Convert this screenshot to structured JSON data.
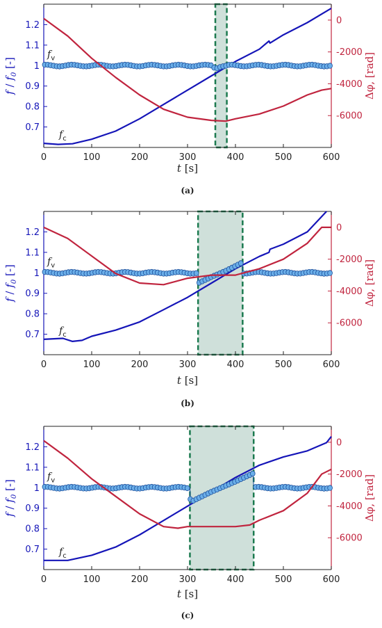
{
  "colors": {
    "frequency": "#1515b8",
    "phase": "#c0243e",
    "marker_fill": "#6aaee8",
    "marker_edge": "#1d4f9c",
    "window_fill": "#cfe0da",
    "window_edge": "#1b7a4f"
  },
  "labels": {
    "xlabel_t": "t",
    "xlabel_unit": "[s]",
    "ylabel_left_f": "f",
    "ylabel_left_sep": " / ",
    "ylabel_left_f0": "f",
    "ylabel_left_f0_sub": "0",
    "ylabel_left_unit": " [-]",
    "ylabel_right": "Δφ, [rad]",
    "fv_main": "f",
    "fv_sub": "v",
    "fc_main": "f",
    "fc_sub": "c"
  },
  "chart_data": [
    {
      "type": "line",
      "caption": "(a)",
      "xlim": [
        0,
        600
      ],
      "ylim_left": [
        0.6,
        1.3
      ],
      "ylim_right": [
        -8000,
        1000
      ],
      "x_ticks": [
        0,
        100,
        200,
        300,
        400,
        500,
        600
      ],
      "y_left_ticks": [
        "0.7",
        "0.8",
        "0.9",
        "1",
        "1.1",
        "1.2"
      ],
      "y_right_ticks": [
        "0",
        "-2000",
        "-4000",
        "-6000"
      ],
      "window": [
        358,
        382
      ],
      "series": [
        {
          "key": "fc",
          "axis": "left",
          "points": [
            [
              0,
              0.62
            ],
            [
              30,
              0.615
            ],
            [
              60,
              0.618
            ],
            [
              100,
              0.64
            ],
            [
              150,
              0.68
            ],
            [
              200,
              0.74
            ],
            [
              250,
              0.81
            ],
            [
              300,
              0.88
            ],
            [
              350,
              0.95
            ],
            [
              400,
              1.02
            ],
            [
              450,
              1.08
            ],
            [
              470,
              1.12
            ],
            [
              472,
              1.11
            ],
            [
              500,
              1.15
            ],
            [
              550,
              1.21
            ],
            [
              600,
              1.28
            ]
          ]
        },
        {
          "key": "fv",
          "axis": "left",
          "markers": true,
          "points": [
            [
              0,
              1.0
            ],
            [
              100,
              1.0
            ],
            [
              200,
              1.0
            ],
            [
              300,
              1.0
            ],
            [
              350,
              1.0
            ],
            [
              360,
              0.985
            ],
            [
              370,
              0.995
            ],
            [
              382,
              1.0
            ],
            [
              450,
              1.0
            ],
            [
              500,
              1.0
            ],
            [
              600,
              1.0
            ]
          ]
        },
        {
          "key": "phase",
          "axis": "right",
          "points": [
            [
              0,
              100
            ],
            [
              50,
              -1000
            ],
            [
              100,
              -2400
            ],
            [
              150,
              -3600
            ],
            [
              200,
              -4700
            ],
            [
              250,
              -5600
            ],
            [
              300,
              -6100
            ],
            [
              350,
              -6300
            ],
            [
              380,
              -6350
            ],
            [
              400,
              -6200
            ],
            [
              450,
              -5900
            ],
            [
              500,
              -5400
            ],
            [
              550,
              -4700
            ],
            [
              580,
              -4400
            ],
            [
              600,
              -4300
            ]
          ]
        }
      ]
    },
    {
      "type": "line",
      "caption": "(b)",
      "xlim": [
        0,
        600
      ],
      "ylim_left": [
        0.6,
        1.3
      ],
      "ylim_right": [
        -8000,
        1000
      ],
      "x_ticks": [
        0,
        100,
        200,
        300,
        400,
        500,
        600
      ],
      "y_left_ticks": [
        "0.7",
        "0.8",
        "0.9",
        "1",
        "1.1",
        "1.2"
      ],
      "y_right_ticks": [
        "0",
        "-2000",
        "-4000",
        "-6000"
      ],
      "window": [
        322,
        415
      ],
      "series": [
        {
          "key": "fc",
          "axis": "left",
          "points": [
            [
              0,
              0.675
            ],
            [
              40,
              0.68
            ],
            [
              60,
              0.665
            ],
            [
              80,
              0.67
            ],
            [
              100,
              0.69
            ],
            [
              150,
              0.72
            ],
            [
              200,
              0.76
            ],
            [
              250,
              0.82
            ],
            [
              300,
              0.88
            ],
            [
              350,
              0.95
            ],
            [
              400,
              1.02
            ],
            [
              450,
              1.08
            ],
            [
              470,
              1.1
            ],
            [
              472,
              1.115
            ],
            [
              500,
              1.14
            ],
            [
              550,
              1.2
            ],
            [
              590,
              1.3
            ]
          ]
        },
        {
          "key": "fv",
          "axis": "left",
          "markers": true,
          "points": [
            [
              0,
              1.0
            ],
            [
              100,
              1.0
            ],
            [
              200,
              1.0
            ],
            [
              300,
              1.0
            ],
            [
              322,
              1.0
            ],
            [
              323,
              0.95
            ],
            [
              350,
              0.98
            ],
            [
              380,
              1.01
            ],
            [
              414,
              1.05
            ],
            [
              415,
              1.0
            ],
            [
              500,
              1.0
            ],
            [
              600,
              1.0
            ]
          ]
        },
        {
          "key": "phase",
          "axis": "right",
          "points": [
            [
              0,
              0
            ],
            [
              50,
              -700
            ],
            [
              100,
              -1800
            ],
            [
              150,
              -2900
            ],
            [
              200,
              -3500
            ],
            [
              250,
              -3600
            ],
            [
              300,
              -3200
            ],
            [
              350,
              -3000
            ],
            [
              400,
              -3000
            ],
            [
              450,
              -2600
            ],
            [
              500,
              -2000
            ],
            [
              550,
              -1000
            ],
            [
              580,
              0
            ],
            [
              600,
              0
            ]
          ]
        }
      ]
    },
    {
      "type": "line",
      "caption": "(c)",
      "xlim": [
        0,
        600
      ],
      "ylim_left": [
        0.6,
        1.3
      ],
      "ylim_right": [
        -8000,
        1000
      ],
      "x_ticks": [
        0,
        100,
        200,
        300,
        400,
        500,
        600
      ],
      "y_left_ticks": [
        "0.7",
        "0.8",
        "0.9",
        "1",
        "1.1",
        "1.2"
      ],
      "y_right_ticks": [
        "0",
        "-2000",
        "-4000",
        "-6000"
      ],
      "window": [
        305,
        438
      ],
      "series": [
        {
          "key": "fc",
          "axis": "left",
          "points": [
            [
              0,
              0.645
            ],
            [
              50,
              0.645
            ],
            [
              100,
              0.67
            ],
            [
              150,
              0.71
            ],
            [
              200,
              0.77
            ],
            [
              250,
              0.84
            ],
            [
              300,
              0.91
            ],
            [
              350,
              0.98
            ],
            [
              400,
              1.05
            ],
            [
              450,
              1.11
            ],
            [
              500,
              1.15
            ],
            [
              550,
              1.18
            ],
            [
              590,
              1.22
            ],
            [
              600,
              1.25
            ]
          ]
        },
        {
          "key": "fv",
          "axis": "left",
          "markers": true,
          "points": [
            [
              0,
              1.0
            ],
            [
              100,
              1.0
            ],
            [
              200,
              1.0
            ],
            [
              300,
              1.0
            ],
            [
              305,
              1.0
            ],
            [
              306,
              0.93
            ],
            [
              350,
              0.98
            ],
            [
              400,
              1.03
            ],
            [
              437,
              1.07
            ],
            [
              438,
              1.0
            ],
            [
              500,
              1.0
            ],
            [
              600,
              1.0
            ]
          ]
        },
        {
          "key": "phase",
          "axis": "right",
          "points": [
            [
              0,
              100
            ],
            [
              50,
              -1000
            ],
            [
              100,
              -2300
            ],
            [
              150,
              -3400
            ],
            [
              200,
              -4500
            ],
            [
              250,
              -5300
            ],
            [
              280,
              -5400
            ],
            [
              300,
              -5300
            ],
            [
              350,
              -5300
            ],
            [
              400,
              -5300
            ],
            [
              430,
              -5200
            ],
            [
              450,
              -4900
            ],
            [
              500,
              -4300
            ],
            [
              550,
              -3200
            ],
            [
              580,
              -2000
            ],
            [
              600,
              -1700
            ]
          ]
        }
      ]
    }
  ]
}
